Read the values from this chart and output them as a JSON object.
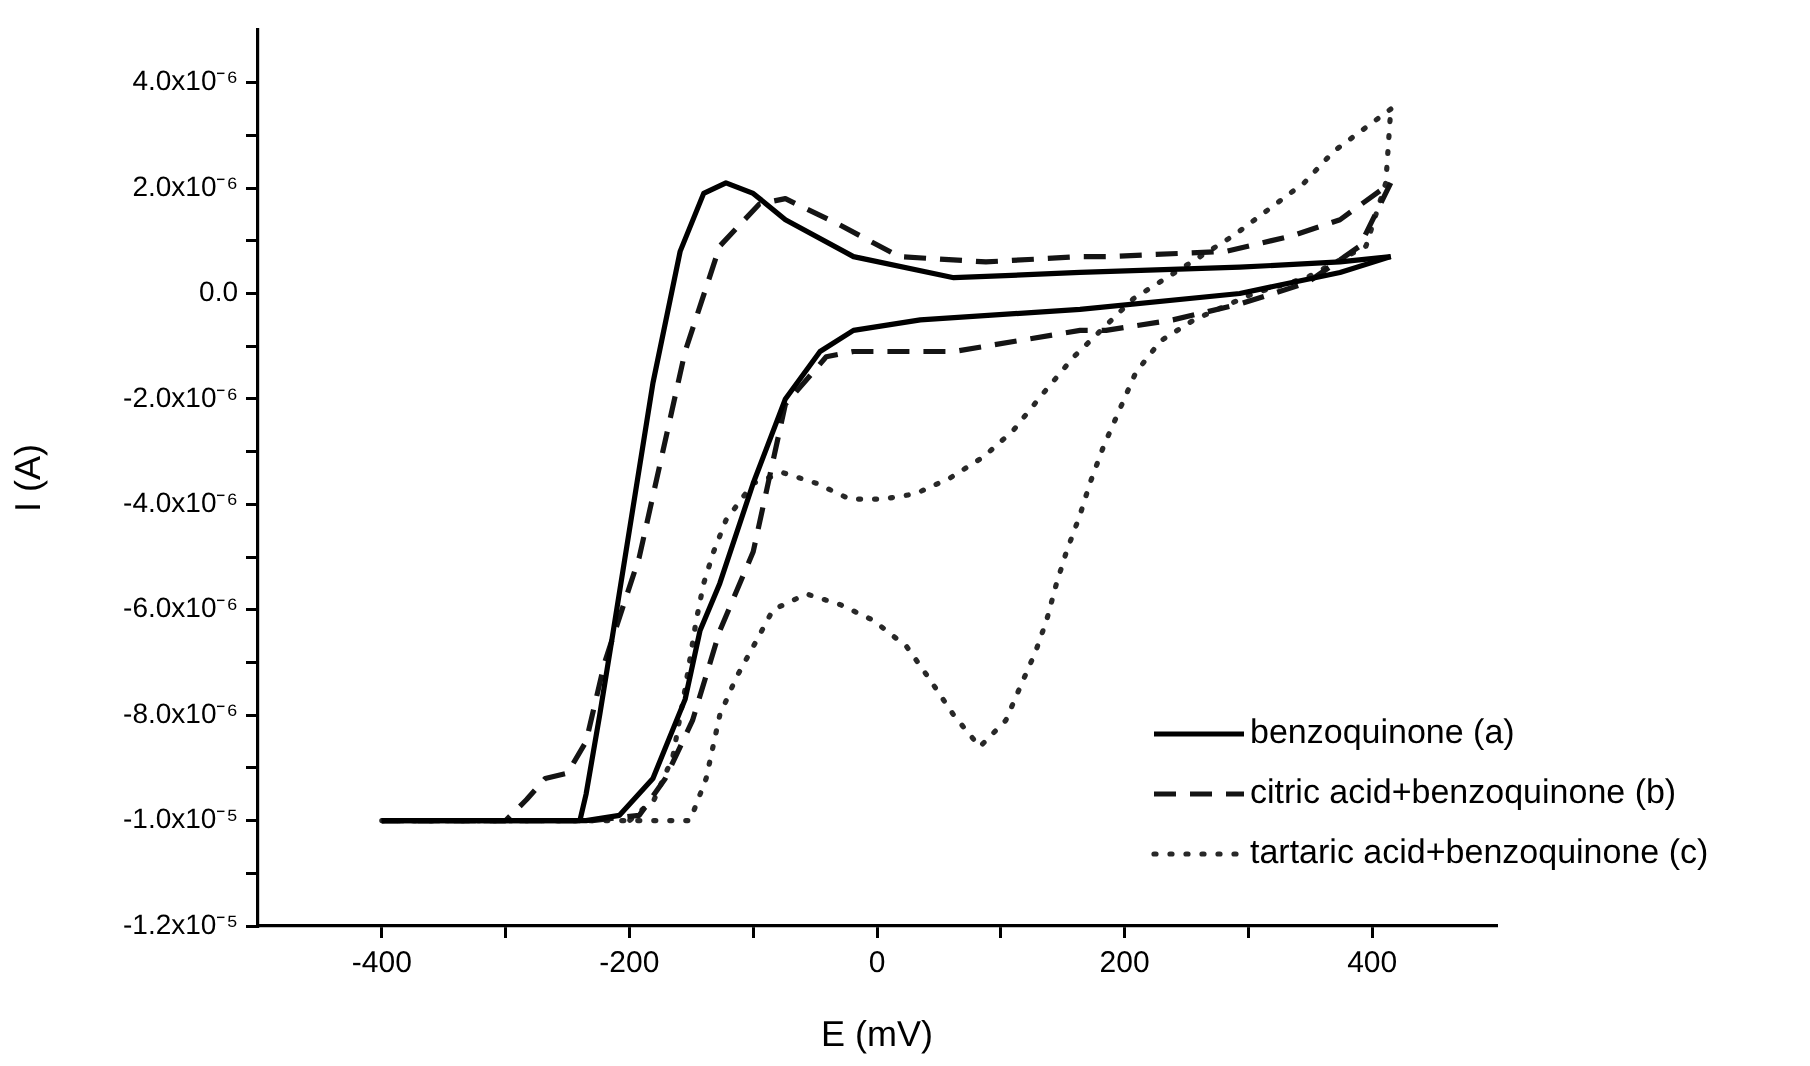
{
  "chart_data": {
    "type": "line",
    "xlabel": "E (mV)",
    "ylabel": "I (A)",
    "xlim": [
      -500,
      500
    ],
    "xticks": [
      -400,
      {
        "value": -300,
        "label": null
      },
      -200,
      {
        "value": -100,
        "label": null
      },
      0,
      {
        "value": 100,
        "label": null
      },
      200,
      {
        "value": 300,
        "label": null
      },
      400
    ],
    "ylim": [
      -1.2e-05,
      5e-06
    ],
    "yticks": [
      {
        "value": 4e-06,
        "label": "4.0x10⁻⁶"
      },
      {
        "value": 3e-06,
        "label": null
      },
      {
        "value": 2e-06,
        "label": "2.0x10⁻⁶"
      },
      {
        "value": 1e-06,
        "label": null
      },
      {
        "value": 0,
        "label": "0.0"
      },
      {
        "value": -1e-06,
        "label": null
      },
      {
        "value": -2e-06,
        "label": "-2.0x10⁻⁶"
      },
      {
        "value": -3e-06,
        "label": null
      },
      {
        "value": -4e-06,
        "label": "-4.0x10⁻⁶"
      },
      {
        "value": -5e-06,
        "label": null
      },
      {
        "value": -6e-06,
        "label": "-6.0x10⁻⁶"
      },
      {
        "value": -7e-06,
        "label": null
      },
      {
        "value": -8e-06,
        "label": "-8.0x10⁻⁶"
      },
      {
        "value": -9e-06,
        "label": null
      },
      {
        "value": -1e-05,
        "label": "-1.0x10⁻⁵"
      },
      {
        "value": -1.1e-05,
        "label": null
      },
      {
        "value": -1.2e-05,
        "label": "-1.2x10⁻⁵"
      }
    ],
    "grid": false,
    "legend": "bottom right",
    "marker": "none",
    "series": [
      {
        "name": "benzoquinone (a)",
        "color": "#000000",
        "line_style": "solid",
        "x": [
          -400,
          -240,
          -235,
          -224,
          -213,
          -181,
          -159,
          -140,
          -122,
          -100,
          -74,
          -19,
          62,
          164,
          293,
          374,
          415
        ],
        "values": [
          -1e-05,
          -1e-05,
          -9.5e-06,
          -8e-06,
          -6.4e-06,
          -1.7e-06,
          8e-07,
          1.9e-06,
          2.1e-06,
          1.9e-06,
          1.4e-06,
          7e-07,
          3e-07,
          4e-07,
          5e-07,
          6e-07,
          7e-07
        ]
      },
      {
        "color": "#000000",
        "line_style": "solid",
        "x": [
          415,
          374,
          293,
          164,
          35,
          -19,
          -46,
          -74,
          -100,
          -127,
          -143,
          -155,
          -181,
          -208,
          -235,
          -400
        ],
        "values": [
          7e-07,
          4e-07,
          0,
          -3e-07,
          -5e-07,
          -7e-07,
          -1.1e-06,
          -2e-06,
          -3.6e-06,
          -5.5e-06,
          -6.4e-06,
          -7.7e-06,
          -9.2e-06,
          -9.9e-06,
          -1e-05,
          -1e-05
        ]
      },
      {
        "name": "citric acid+benzoquinone (b)",
        "color": "#141414",
        "line_style": "dashed",
        "x": [
          -400,
          -300,
          -283,
          -268,
          -250,
          -235,
          -220,
          -192,
          -155,
          -127,
          -95,
          -74,
          -30,
          18,
          88,
          164,
          185,
          282,
          336,
          374,
          415
        ],
        "values": [
          -1e-05,
          -1e-05,
          -9.6e-06,
          -9.2e-06,
          -9.1e-06,
          -8.5e-06,
          -7e-06,
          -5e-06,
          -1.1e-06,
          9e-07,
          1.7e-06,
          1.8e-06,
          1.3e-06,
          7e-07,
          6e-07,
          7e-07,
          7e-07,
          8e-07,
          1.1e-06,
          1.4e-06,
          2.1e-06
        ]
      },
      {
        "color": "#141414",
        "line_style": "dashed",
        "x": [
          415,
          390,
          347,
          293,
          239,
          185,
          164,
          62,
          -19,
          -41,
          -74,
          -100,
          -127,
          -149,
          -171,
          -192,
          -230,
          -400
        ],
        "values": [
          2.1e-06,
          9e-07,
          2e-07,
          -2e-07,
          -5e-07,
          -7e-07,
          -7e-07,
          -1.1e-06,
          -1.1e-06,
          -1.2e-06,
          -2.1e-06,
          -4.9e-06,
          -6.4e-06,
          -8.1e-06,
          -9.2e-06,
          -9.9e-06,
          -1e-05,
          -1e-05
        ]
      },
      {
        "name": "tartaric acid+benzoquinone (c)",
        "color": "#282828",
        "line_style": "dotted",
        "x": [
          -400,
          -151,
          -138,
          -127,
          -114,
          -100,
          -84,
          -57,
          -30,
          -3,
          24,
          42,
          62,
          83,
          104,
          115,
          128,
          137,
          145,
          153,
          164,
          172,
          183,
          196,
          209,
          229,
          256,
          304,
          347,
          395,
          411,
          415
        ],
        "values": [
          -1e-05,
          -1e-05,
          -9.2e-06,
          -8e-06,
          -7.3e-06,
          -6.7e-06,
          -6e-06,
          -5.7e-06,
          -5.9e-06,
          -6.2e-06,
          -6.7e-06,
          -7.3e-06,
          -8e-06,
          -8.6e-06,
          -8.1e-06,
          -7.5e-06,
          -6.8e-06,
          -6.2e-06,
          -5.5e-06,
          -4.9e-06,
          -4.2e-06,
          -3.6e-06,
          -2.9e-06,
          -2.2e-06,
          -1.5e-06,
          -9e-07,
          -5e-07,
          0,
          3e-07,
          9e-07,
          2.1e-06,
          3.5e-06
        ]
      },
      {
        "color": "#282828",
        "line_style": "dotted",
        "x": [
          415,
          369,
          345,
          288,
          234,
          207,
          159,
          134,
          110,
          86,
          59,
          31,
          5,
          -22,
          -49,
          -76,
          -100,
          -122,
          -132,
          -140,
          -146,
          -155,
          -165,
          -180,
          -200
        ],
        "values": [
          3.5e-06,
          2.7e-06,
          2.1e-06,
          1.1e-06,
          3e-07,
          -1e-07,
          -1.2e-06,
          -1.9e-06,
          -2.6e-06,
          -3.1e-06,
          -3.5e-06,
          -3.8e-06,
          -3.9e-06,
          -3.9e-06,
          -3.6e-06,
          -3.4e-06,
          -3.6e-06,
          -4.3e-06,
          -4.9e-06,
          -5.5e-06,
          -6.2e-06,
          -7.5e-06,
          -8.8e-06,
          -9.6e-06,
          -1e-05
        ]
      }
    ]
  }
}
